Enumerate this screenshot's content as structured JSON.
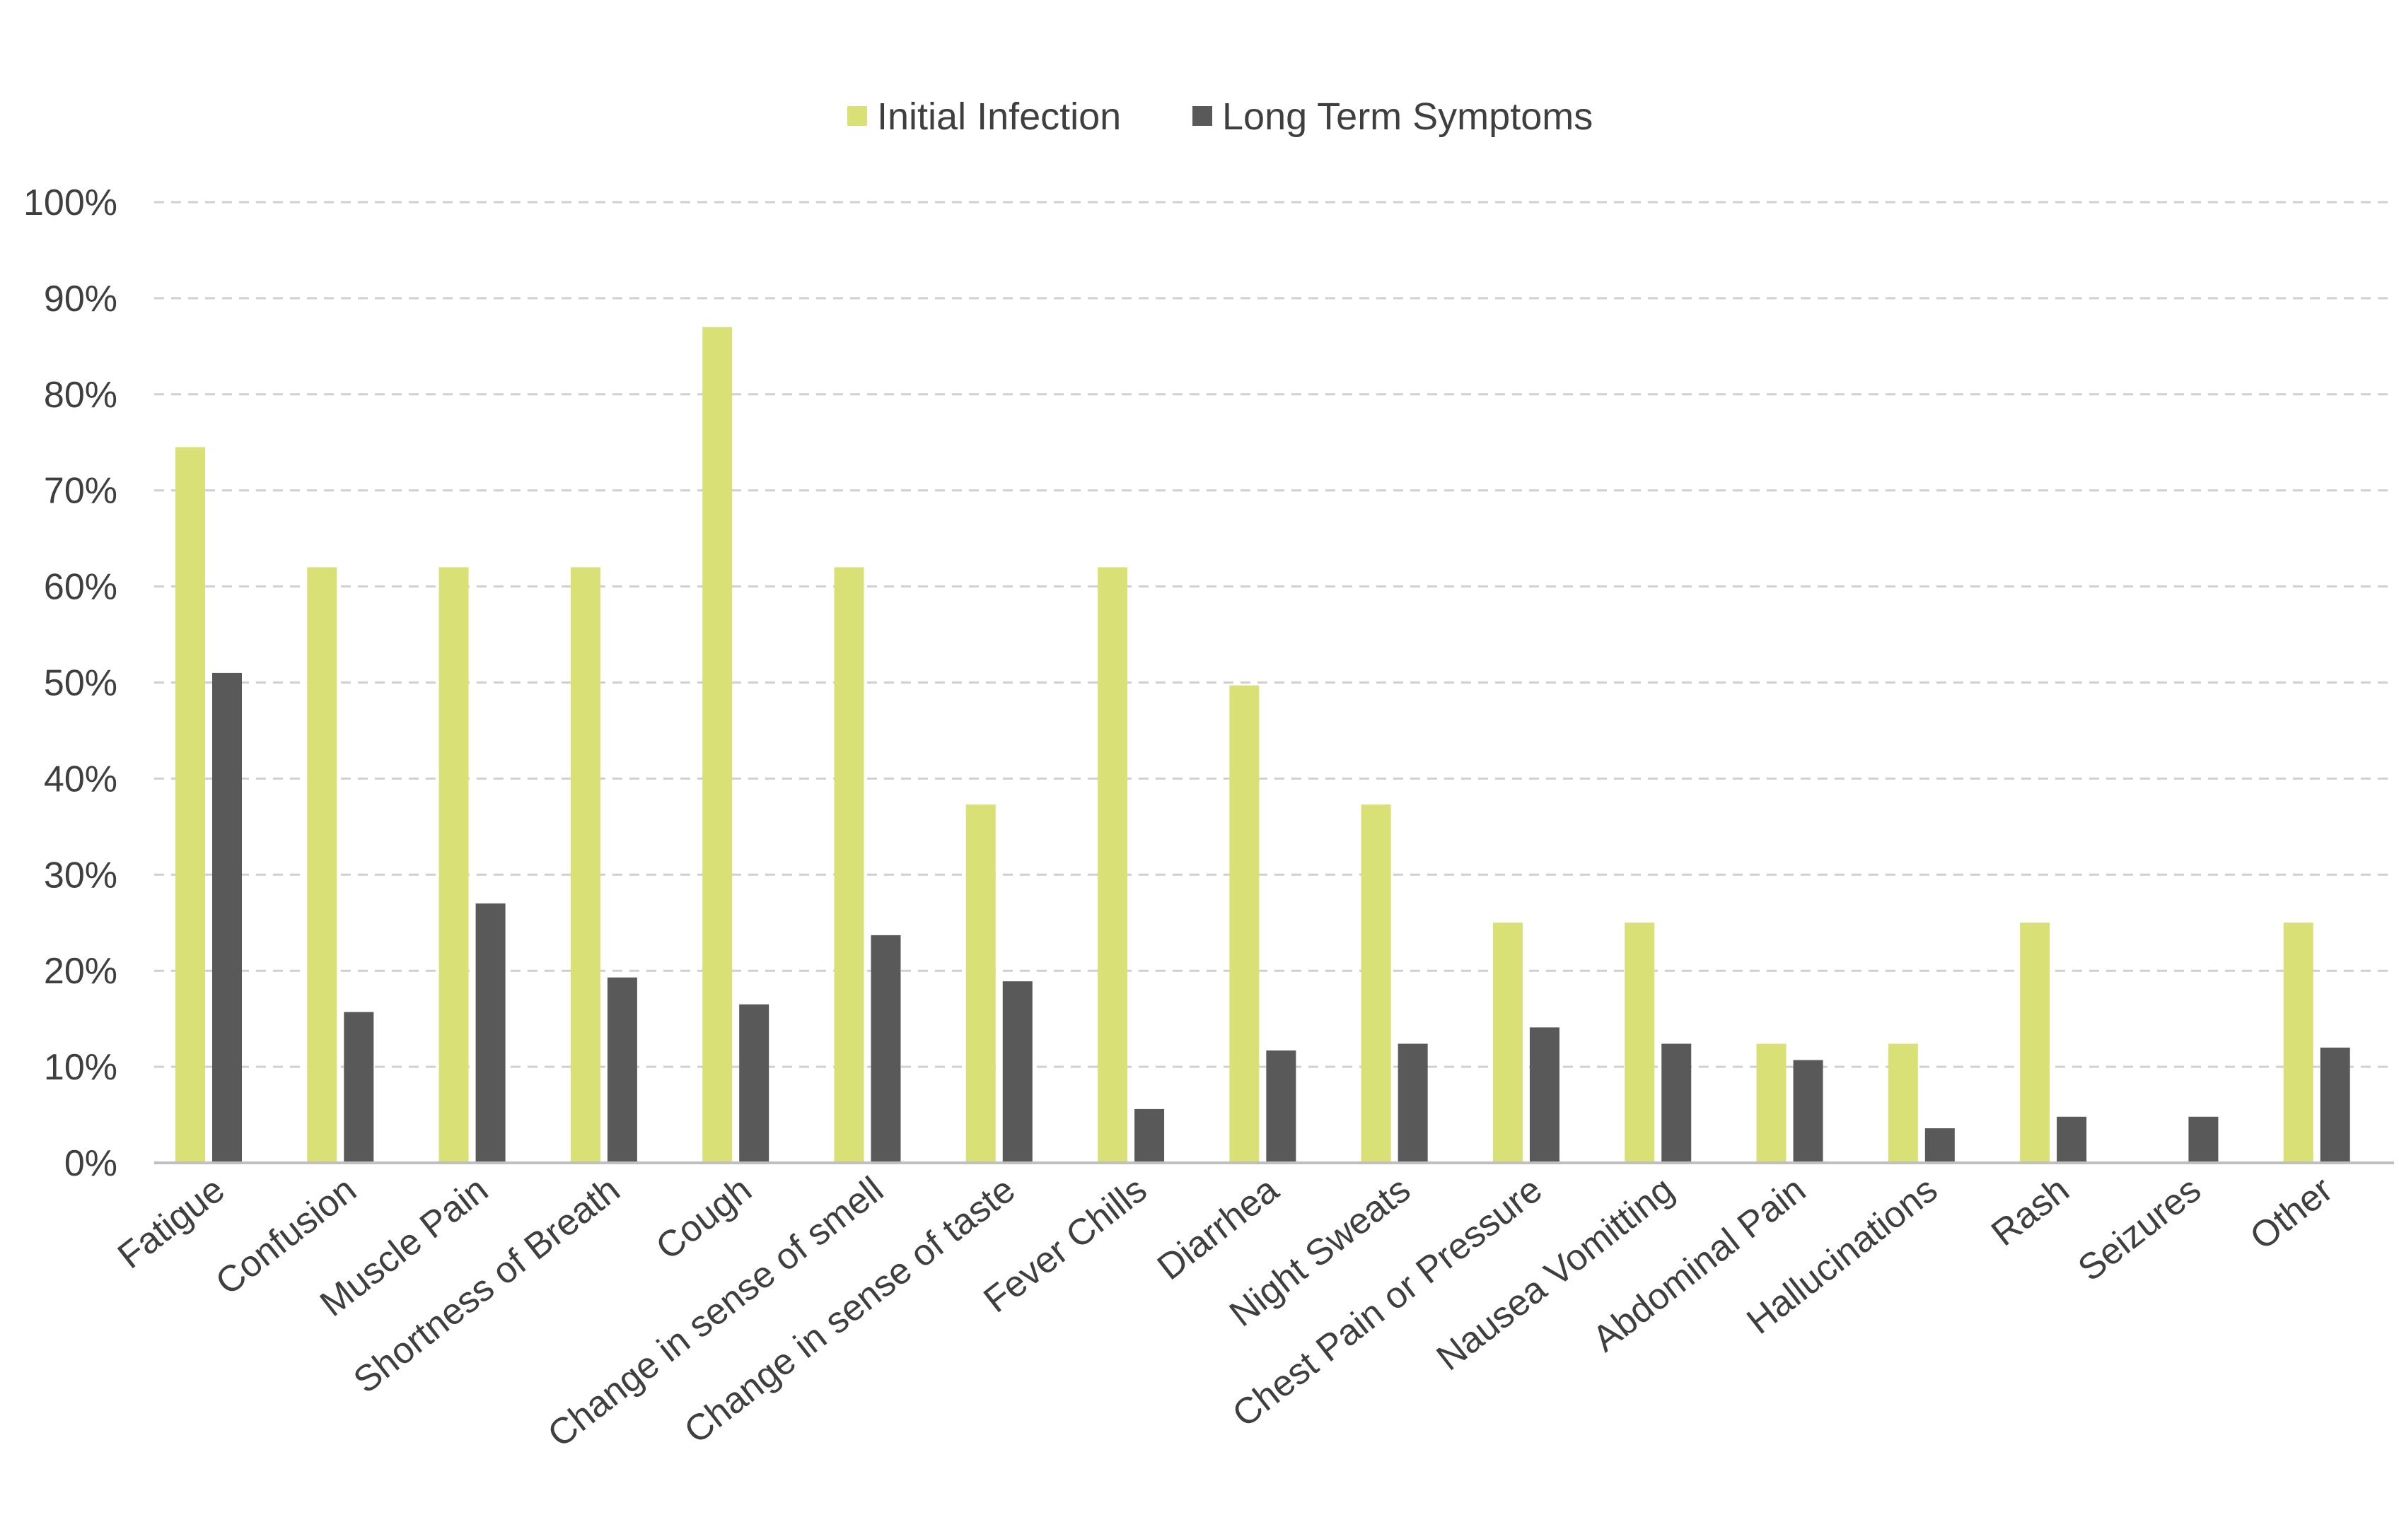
{
  "chart_data": {
    "type": "bar",
    "categories": [
      "Fatigue",
      "Confusion",
      "Muscle Pain",
      "Shortness of Breath",
      "Cough",
      "Change in sense of smell",
      "Change in sense of taste",
      "Fever Chills",
      "Diarrhea",
      "Night Sweats",
      "Chest Pain or Pressure",
      "Nausea Vomitting",
      "Abdominal Pain",
      "Hallucinations",
      "Rash",
      "Seizures",
      "Other"
    ],
    "series": [
      {
        "name": "Initial Infection",
        "color": "#d9e176",
        "values": [
          74.5,
          62,
          62,
          62,
          87,
          62,
          37.3,
          62,
          49.7,
          37.3,
          25,
          25,
          12.4,
          12.4,
          25,
          0,
          25
        ]
      },
      {
        "name": "Long Term Symptoms",
        "color": "#595959",
        "values": [
          51,
          15.7,
          27,
          19.3,
          16.5,
          23.7,
          18.9,
          5.6,
          11.7,
          12.4,
          14.1,
          12.4,
          10.7,
          3.6,
          4.8,
          4.8,
          12
        ]
      }
    ],
    "y_ticks": [
      "0%",
      "10%",
      "20%",
      "30%",
      "40%",
      "50%",
      "60%",
      "70%",
      "80%",
      "90%",
      "100%"
    ],
    "ylim": [
      0,
      100
    ],
    "y_unit": "%",
    "grid": true,
    "gridline_color": "#d0d0d0",
    "axis_color": "#bfbfbf",
    "legend_position": "top-center"
  }
}
